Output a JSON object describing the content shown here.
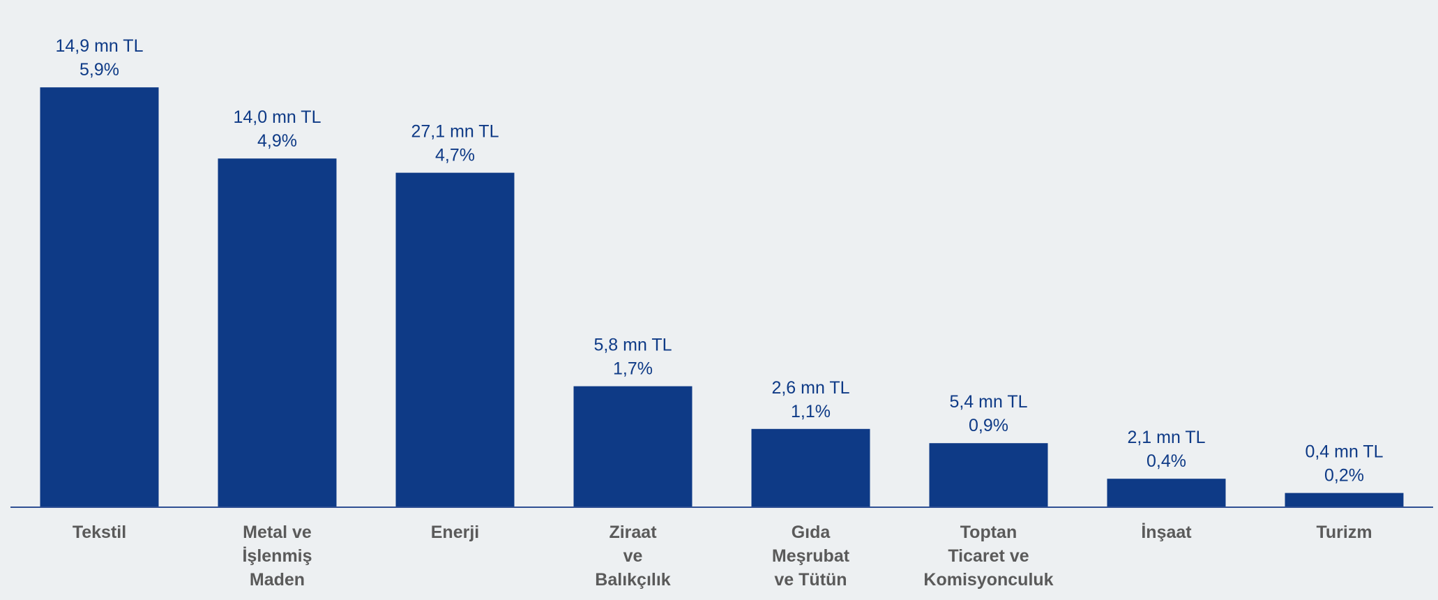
{
  "chart_data": {
    "type": "bar",
    "title": "",
    "xlabel": "",
    "ylabel": "",
    "ylim": [
      0,
      6.0
    ],
    "grid": false,
    "legend": "none",
    "colors": {
      "bar": "#0e3a86",
      "background": "#edf0f2",
      "axis": "#2f4f93",
      "category_text": "#5a5a5a"
    },
    "categories": [
      [
        "Tekstil"
      ],
      [
        "Metal ve",
        "İşlenmiş",
        "Maden"
      ],
      [
        "Enerji"
      ],
      [
        "Ziraat",
        "ve",
        "Balıkçılık"
      ],
      [
        "Gıda",
        "Meşrubat",
        "ve Tütün"
      ],
      [
        "Toptan",
        "Ticaret ve",
        "Komisyonculuk"
      ],
      [
        "İnşaat"
      ],
      [
        "Turizm"
      ]
    ],
    "values": [
      5.9,
      4.9,
      4.7,
      1.7,
      1.1,
      0.9,
      0.4,
      0.2
    ],
    "data_labels": [
      [
        "14,9 mn TL",
        "5,9%"
      ],
      [
        "14,0 mn TL",
        "4,9%"
      ],
      [
        "27,1 mn TL",
        "4,7%"
      ],
      [
        "5,8 mn TL",
        "1,7%"
      ],
      [
        "2,6 mn TL",
        "1,1%"
      ],
      [
        "5,4 mn TL",
        "0,9%"
      ],
      [
        "2,1 mn TL",
        "0,4%"
      ],
      [
        "0,4 mn TL",
        "0,2%"
      ]
    ]
  }
}
